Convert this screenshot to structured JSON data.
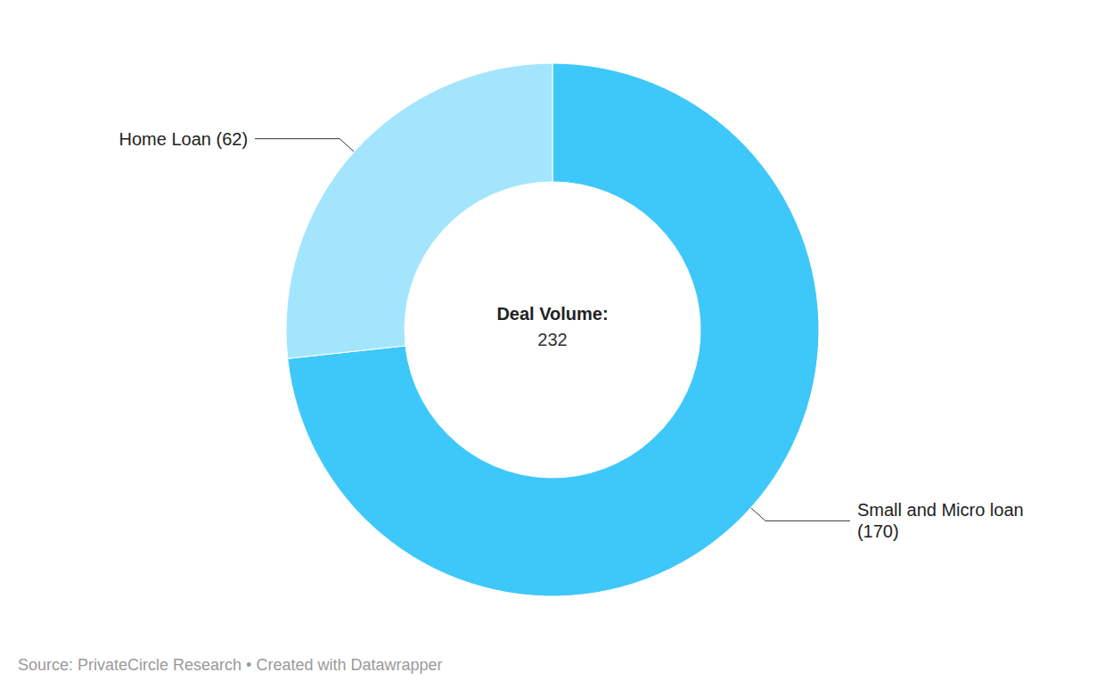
{
  "chart_data": {
    "type": "pie",
    "categories": [
      "Small and Micro loan",
      "Home Loan"
    ],
    "values": [
      170,
      62
    ],
    "value_labels": [
      "Small and Micro loan (170)",
      "Home Loan (62)"
    ],
    "colors": [
      "#3ec8f9",
      "#a3e5fd"
    ],
    "total_label": "Deal Volume:",
    "total": 232,
    "source": "Source: PrivateCircle Research • Created with Datawrapper",
    "data_labels": true
  }
}
